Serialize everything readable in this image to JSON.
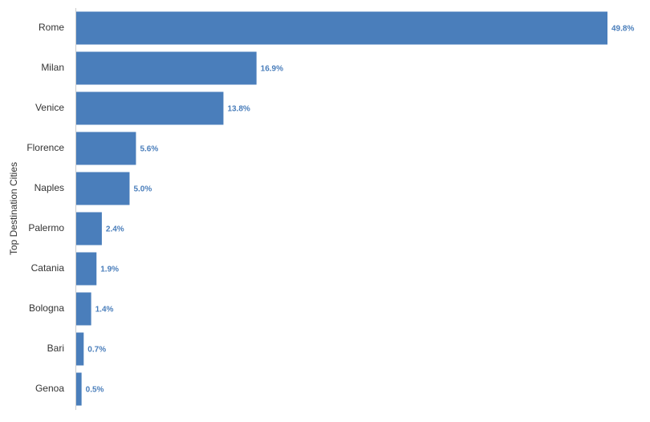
{
  "chart_data": {
    "type": "bar",
    "orientation": "horizontal",
    "y_label": "Top Destination Cities",
    "categories": [
      "Rome",
      "Milan",
      "Venice",
      "Florence",
      "Naples",
      "Palermo",
      "Catania",
      "Bologna",
      "Bari",
      "Genoa"
    ],
    "values": [
      49.8,
      16.9,
      13.8,
      5.6,
      5.0,
      2.4,
      1.9,
      1.4,
      0.7,
      0.5
    ],
    "value_labels": [
      "49.8%",
      "16.9%",
      "13.8%",
      "5.6%",
      "5.0%",
      "2.4%",
      "1.9%",
      "1.4%",
      "0.7%",
      "0.5%"
    ],
    "color": "#4a7ebb"
  }
}
